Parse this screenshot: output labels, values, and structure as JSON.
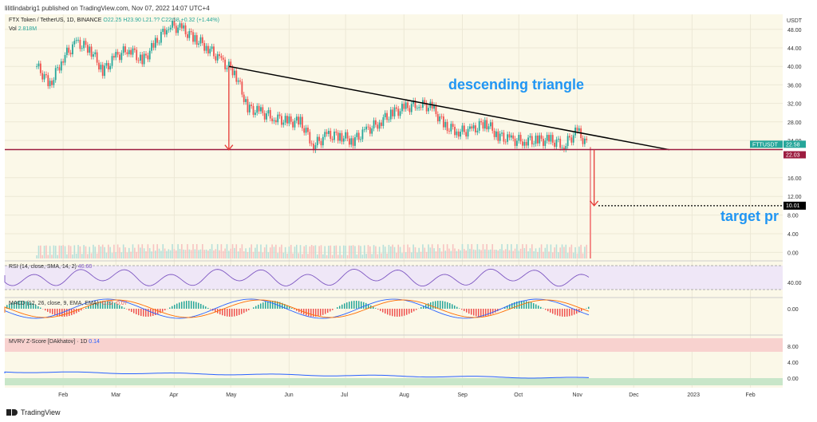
{
  "header": {
    "published": "lilitlindabrig1 published on TradingView.com, Nov 07, 2022 14:07 UTC+4"
  },
  "symbol_line": {
    "title": "FTX Token / TetherUS, 1D, BINANCE",
    "ohlc": "O22.25 H23.90 L21.?? C22.58 +0.32 (+1.44%)"
  },
  "volume_label": "Vol",
  "volume_value": "2.818M",
  "footer": {
    "brand": "TradingView"
  },
  "annotations": {
    "pattern": "descending triangle",
    "target": "target pr"
  },
  "price_tags": {
    "symbol": "FTTUSDT",
    "last": "22.58",
    "support": "22.03",
    "target": "10.01"
  },
  "currency": "USDT",
  "colors": {
    "background": "#fbf8e8",
    "up": "#26a69a",
    "down": "#ef5350",
    "trendline": "#000000",
    "support": "#9c1c3f",
    "arrow": "#e53935",
    "annotation": "#2196f3",
    "rsi": "#7e57c2",
    "macd": "#2962ff",
    "signal": "#ff6d00",
    "mvrv": "#2962ff"
  },
  "indicators": {
    "rsi_label": "RSI (14, close, SMA, 14, 2)",
    "rsi_value": "40.60",
    "rsi_axis": [
      "40.00"
    ],
    "macd_label": "MACD (12, 26, close, 9, EMA, EMA)",
    "macd_values": "-0.22  -0.07",
    "macd_axis": [
      "0.00"
    ],
    "mvrv_label": "MVRV Z-Score [DAkhatov] · 1D",
    "mvrv_value": "0.14",
    "mvrv_axis": [
      "8.00",
      "4.00",
      "0.00"
    ]
  },
  "chart_data": {
    "type": "candlestick",
    "title": "FTX Token / TetherUS, 1D, BINANCE",
    "x_labels": [
      "Feb",
      "Mar",
      "Apr",
      "May",
      "Jun",
      "Jul",
      "Aug",
      "Sep",
      "Oct",
      "Nov",
      "Dec",
      "2023",
      "Feb"
    ],
    "y_ticks": [
      "48.00",
      "44.00",
      "40.00",
      "36.00",
      "32.00",
      "28.00",
      "24.00",
      "16.00",
      "12.00",
      "8.00",
      "4.00",
      "0.00"
    ],
    "y_tick_values": [
      48,
      44,
      40,
      36,
      32,
      28,
      24,
      16,
      12,
      8,
      4,
      0
    ],
    "ylim": [
      -1,
      49
    ],
    "series": [
      {
        "name": "FTTUSDT",
        "points": [
          {
            "x": "2022-01-18",
            "close": 40
          },
          {
            "x": "2022-01-25",
            "close": 36
          },
          {
            "x": "2022-02-01",
            "close": 42
          },
          {
            "x": "2022-02-08",
            "close": 45
          },
          {
            "x": "2022-02-15",
            "close": 44
          },
          {
            "x": "2022-02-22",
            "close": 39
          },
          {
            "x": "2022-03-01",
            "close": 42
          },
          {
            "x": "2022-03-08",
            "close": 44
          },
          {
            "x": "2022-03-15",
            "close": 41
          },
          {
            "x": "2022-03-22",
            "close": 45
          },
          {
            "x": "2022-03-29",
            "close": 49
          },
          {
            "x": "2022-04-05",
            "close": 48
          },
          {
            "x": "2022-04-12",
            "close": 46
          },
          {
            "x": "2022-04-19",
            "close": 44
          },
          {
            "x": "2022-04-26",
            "close": 41
          },
          {
            "x": "2022-05-03",
            "close": 39
          },
          {
            "x": "2022-05-10",
            "close": 31
          },
          {
            "x": "2022-05-17",
            "close": 30
          },
          {
            "x": "2022-05-24",
            "close": 29
          },
          {
            "x": "2022-05-31",
            "close": 28
          },
          {
            "x": "2022-06-07",
            "close": 28
          },
          {
            "x": "2022-06-14",
            "close": 23
          },
          {
            "x": "2022-06-21",
            "close": 25
          },
          {
            "x": "2022-06-28",
            "close": 25
          },
          {
            "x": "2022-07-05",
            "close": 24
          },
          {
            "x": "2022-07-12",
            "close": 26
          },
          {
            "x": "2022-07-19",
            "close": 28
          },
          {
            "x": "2022-07-26",
            "close": 30
          },
          {
            "x": "2022-08-02",
            "close": 31
          },
          {
            "x": "2022-08-09",
            "close": 32
          },
          {
            "x": "2022-08-16",
            "close": 31
          },
          {
            "x": "2022-08-23",
            "close": 27
          },
          {
            "x": "2022-08-30",
            "close": 26
          },
          {
            "x": "2022-09-06",
            "close": 26
          },
          {
            "x": "2022-09-13",
            "close": 28
          },
          {
            "x": "2022-09-20",
            "close": 25
          },
          {
            "x": "2022-09-27",
            "close": 24
          },
          {
            "x": "2022-10-04",
            "close": 24
          },
          {
            "x": "2022-10-11",
            "close": 24
          },
          {
            "x": "2022-10-18",
            "close": 24
          },
          {
            "x": "2022-10-25",
            "close": 23
          },
          {
            "x": "2022-11-01",
            "close": 26
          },
          {
            "x": "2022-11-07",
            "close": 22.58
          }
        ]
      }
    ],
    "trendline": {
      "start": {
        "x": "2022-04-30",
        "y": 40
      },
      "end": {
        "x": "2022-12-20",
        "y": 22
      }
    },
    "support_level": 22.03,
    "target_level": 10.01,
    "arrows": [
      {
        "from": {
          "x": "2022-04-30",
          "y": 40
        },
        "to": {
          "x": "2022-04-30",
          "y": 22
        }
      },
      {
        "from": {
          "x": "2022-11-10",
          "y": 22
        },
        "to": {
          "x": "2022-11-10",
          "y": 10
        }
      }
    ]
  }
}
